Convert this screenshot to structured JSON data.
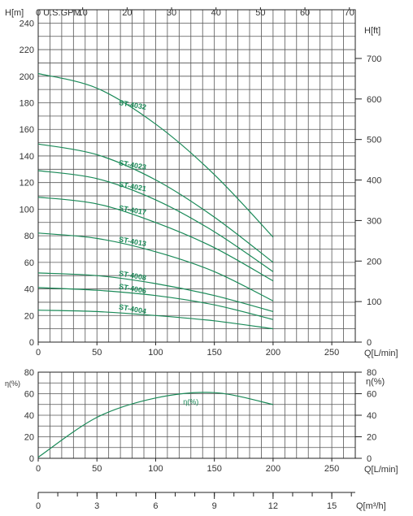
{
  "chart_data": [
    {
      "type": "line",
      "id": "head",
      "ylabel": "H[m]",
      "ylabel_right": "H[ft]",
      "xlabel": "Q[L/min]",
      "top_axis_label": "0 U.S.GPM",
      "top_ticks": [
        "10",
        "20",
        "30",
        "40",
        "50",
        "60",
        "70"
      ],
      "right_ticks": [
        "0",
        "100",
        "200",
        "300",
        "400",
        "500",
        "600",
        "700"
      ],
      "y_ticks": [
        "0",
        "20",
        "40",
        "60",
        "80",
        "100",
        "120",
        "140",
        "160",
        "180",
        "200",
        "220",
        "240"
      ],
      "x_ticks": [
        "0",
        "50",
        "100",
        "150",
        "200",
        "250"
      ],
      "xlim": [
        0,
        270
      ],
      "ylim": [
        0,
        250
      ],
      "grid": true,
      "color": "#1a8a58",
      "series": [
        {
          "name": "ST-4032",
          "x": [
            0,
            50,
            100,
            150,
            200
          ],
          "values": [
            202,
            191,
            164,
            126,
            79
          ]
        },
        {
          "name": "ST-4023",
          "x": [
            0,
            50,
            100,
            150,
            200
          ],
          "values": [
            149,
            141,
            122,
            94,
            60
          ]
        },
        {
          "name": "ST-4021",
          "x": [
            0,
            50,
            100,
            150,
            200
          ],
          "values": [
            129,
            123,
            107,
            83,
            53
          ]
        },
        {
          "name": "ST-4017",
          "x": [
            0,
            50,
            100,
            150,
            200
          ],
          "values": [
            109,
            104,
            90,
            71,
            46
          ]
        },
        {
          "name": "ST-4013",
          "x": [
            0,
            50,
            100,
            150,
            200
          ],
          "values": [
            82,
            78,
            68,
            53,
            31
          ]
        },
        {
          "name": "ST-4008",
          "x": [
            0,
            50,
            100,
            150,
            200
          ],
          "values": [
            52,
            50,
            44,
            35,
            23
          ]
        },
        {
          "name": "ST-4006",
          "x": [
            0,
            50,
            100,
            150,
            200
          ],
          "values": [
            41,
            39,
            35,
            28,
            17
          ]
        },
        {
          "name": "ST-4004",
          "x": [
            0,
            50,
            100,
            150,
            200
          ],
          "values": [
            24,
            23,
            20,
            16,
            10
          ]
        }
      ]
    },
    {
      "type": "line",
      "id": "efficiency",
      "ylabel": "η(%)",
      "ylabel_right": "η(%)",
      "xlabel": "Q[L/min]",
      "y_ticks": [
        "0",
        "20",
        "40",
        "60",
        "80"
      ],
      "right_ticks": [
        "0",
        "20",
        "40",
        "60",
        "80"
      ],
      "x_ticks": [
        "0",
        "50",
        "100",
        "150",
        "200",
        "250"
      ],
      "xlim": [
        0,
        270
      ],
      "ylim": [
        0,
        80
      ],
      "grid": true,
      "color": "#1a8a58",
      "series": [
        {
          "name": "η(%)",
          "x": [
            0,
            50,
            100,
            150,
            200
          ],
          "values": [
            1,
            38,
            56,
            61,
            50
          ]
        }
      ]
    },
    {
      "type": "axis",
      "id": "flow-m3h",
      "xlabel": "Q[m³/h]",
      "x_ticks": [
        "0",
        "3",
        "6",
        "9",
        "12",
        "15"
      ],
      "xlim": [
        0,
        16.2
      ]
    }
  ]
}
